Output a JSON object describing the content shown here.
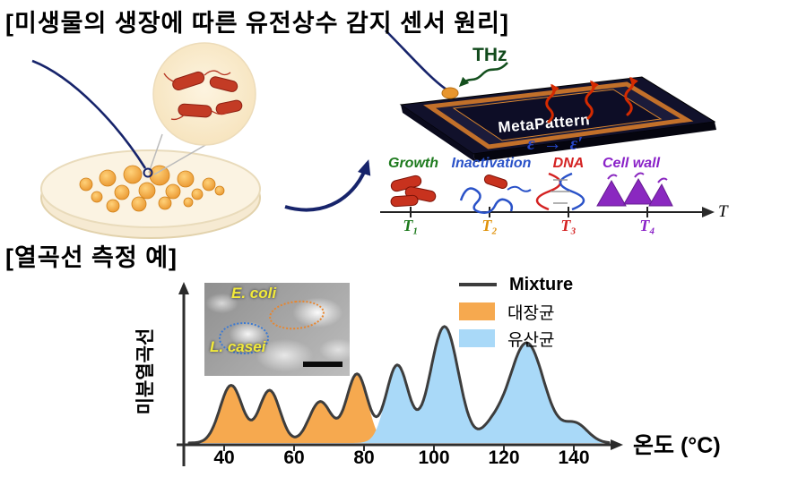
{
  "page": {
    "title_top": "[미생물의 생장에 따른 유전상수 감지 센서 원리]",
    "title_bottom": "[열곡선 측정 예]"
  },
  "sensor": {
    "thz_label": "THz",
    "chip_label": "MetaPattern",
    "epsilon_before": "ε",
    "arrow": "→",
    "epsilon_after": "ε′",
    "timeline_axis_label": "T",
    "stages": [
      {
        "label": "Growth",
        "tick": "T₁",
        "color": "#1d7a1d",
        "tick_color": "#1d7a1d"
      },
      {
        "label": "Inactivation",
        "tick": "T₂",
        "color": "#2a52c8",
        "tick_color": "#e0920a"
      },
      {
        "label": "DNA",
        "tick": "T₃",
        "color": "#d42222",
        "tick_color": "#d42222"
      },
      {
        "label": "Cell wall",
        "tick": "T₄",
        "color": "#8a22c8",
        "tick_color": "#8a22c8"
      }
    ]
  },
  "inset": {
    "ecoli_label": "E. coli",
    "lcasei_label": "L. casei"
  },
  "chart_data": {
    "type": "area",
    "title": "",
    "xlabel": "온도 (°C)",
    "ylabel": "미분열곡선",
    "x_ticks": [
      40,
      60,
      80,
      100,
      120,
      140
    ],
    "x_range": [
      30,
      150
    ],
    "grid": false,
    "legend_position": "top-right",
    "legend": [
      {
        "label": "Mixture",
        "swatch": "line",
        "color": "#3d3d3d"
      },
      {
        "label": "대장균",
        "swatch": "area",
        "color": "#f6a94f"
      },
      {
        "label": "유산균",
        "swatch": "area",
        "color": "#a9d9f8"
      }
    ],
    "series": [
      {
        "name": "대장균",
        "type": "area",
        "color": "#f6a94f",
        "peaks": [
          {
            "center": 42,
            "height": 0.46,
            "sigma": 3.2
          },
          {
            "center": 53,
            "height": 0.42,
            "sigma": 3.0
          },
          {
            "center": 67.5,
            "height": 0.33,
            "sigma": 3.2
          },
          {
            "center": 78,
            "height": 0.55,
            "sigma": 3.0
          }
        ]
      },
      {
        "name": "유산균",
        "type": "area",
        "color": "#a9d9f8",
        "peaks": [
          {
            "center": 89.5,
            "height": 0.62,
            "sigma": 3.2
          },
          {
            "center": 103,
            "height": 0.93,
            "sigma": 4.0
          },
          {
            "center": 116.5,
            "height": 0.1,
            "sigma": 3.0
          },
          {
            "center": 126.5,
            "height": 0.8,
            "sigma": 5.0
          },
          {
            "center": 140.5,
            "height": 0.15,
            "sigma": 3.5
          }
        ]
      },
      {
        "name": "Mixture",
        "type": "line",
        "color": "#3d3d3d",
        "combine": "sum"
      }
    ]
  }
}
